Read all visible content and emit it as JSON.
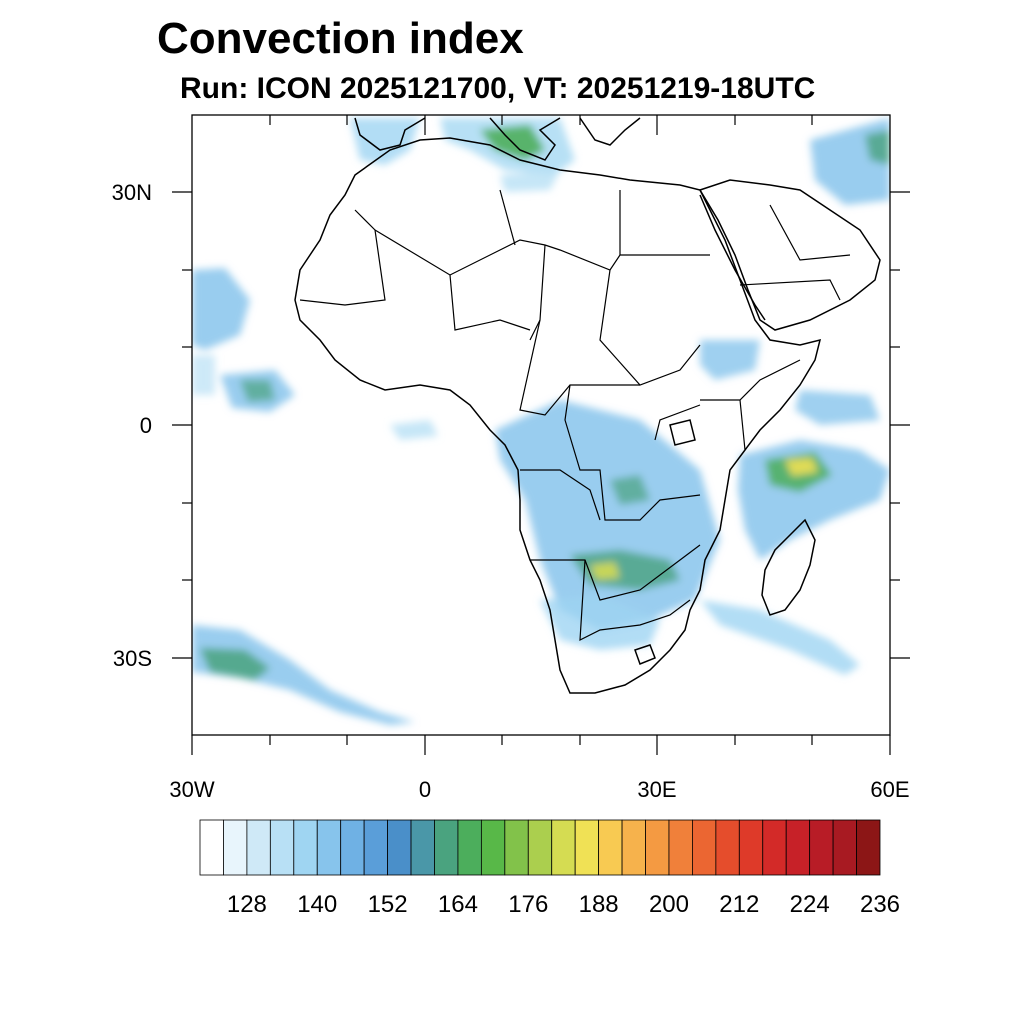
{
  "title": "Convection index",
  "subtitle": "Run: ICON 2025121700,  VT: 20251219-18UTC",
  "map": {
    "region": "Africa",
    "lon_range": [
      -30,
      60
    ],
    "lat_range": [
      -40,
      40
    ],
    "x_tick_labels": [
      {
        "lon": -30,
        "label": "30W"
      },
      {
        "lon": 0,
        "label": "0"
      },
      {
        "lon": 30,
        "label": "30E"
      },
      {
        "lon": 60,
        "label": "60E"
      }
    ],
    "y_tick_labels": [
      {
        "lat": 30,
        "label": "30N"
      },
      {
        "lat": 0,
        "label": "0"
      },
      {
        "lat": -30,
        "label": "30S"
      }
    ]
  },
  "colorbar": {
    "labels": [
      "128",
      "140",
      "152",
      "164",
      "176",
      "188",
      "200",
      "212",
      "224",
      "236"
    ],
    "colors": [
      "#ffffff",
      "#e8f5fc",
      "#cfe9f7",
      "#b8e0f5",
      "#9fd5f2",
      "#87c4ec",
      "#6fb1e4",
      "#5a9ed9",
      "#4a8fc9",
      "#4a97a8",
      "#4aa37f",
      "#4cae5c",
      "#58b848",
      "#82c24a",
      "#abcf4e",
      "#d5dc52",
      "#f0e155",
      "#f8ca52",
      "#f6b24c",
      "#f49a42",
      "#f0803a",
      "#eb6632",
      "#e54d2c",
      "#de3a29",
      "#d32a28",
      "#c72128",
      "#b81c26",
      "#a81a22",
      "#8c1616"
    ]
  }
}
